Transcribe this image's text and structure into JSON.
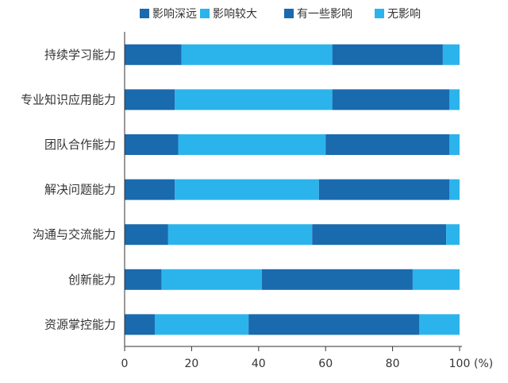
{
  "chart_data": {
    "type": "bar",
    "orientation": "horizontal",
    "stacked": true,
    "categories": [
      "持续学习能力",
      "专业知识应用能力",
      "团队合作能力",
      "解决问题能力",
      "沟通与交流能力",
      "创新能力",
      "资源掌控能力"
    ],
    "series": [
      {
        "name": "影响深远",
        "color": "#1a6aae",
        "values": [
          17,
          15,
          16,
          15,
          13,
          11,
          9
        ]
      },
      {
        "name": "影响较大",
        "color": "#2bb4ec",
        "values": [
          45,
          47,
          44,
          43,
          43,
          30,
          28
        ]
      },
      {
        "name": "有一些影响",
        "color": "#1a6aae",
        "values": [
          33,
          35,
          37,
          39,
          40,
          45,
          51
        ]
      },
      {
        "name": "无影响",
        "color": "#2bb4ec",
        "values": [
          5,
          3,
          3,
          3,
          4,
          14,
          12
        ]
      }
    ],
    "xticks": [
      "0",
      "20",
      "40",
      "60",
      "80",
      "100"
    ],
    "xlim": [
      0,
      100
    ],
    "unit": "(%)",
    "legend_position": "top",
    "grid": false
  }
}
